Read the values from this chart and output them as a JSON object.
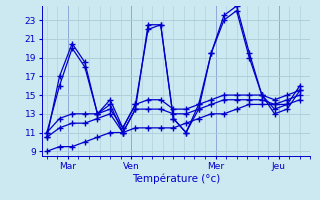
{
  "xlabel": "Température (°c)",
  "bg_color": "#cce8f0",
  "line_color": "#0000cc",
  "grid_color": "#aaccd8",
  "ylim": [
    8.5,
    24.5
  ],
  "yticks": [
    9,
    11,
    13,
    15,
    17,
    19,
    21,
    23
  ],
  "xtick_labels": [
    "Mar",
    "Ven",
    "Mer",
    "Jeu"
  ],
  "xtick_positions": [
    2,
    8,
    16,
    22
  ],
  "xlim": [
    -0.5,
    25
  ],
  "series": [
    [
      10.5,
      17.0,
      20.5,
      18.5,
      13.0,
      14.5,
      11.5,
      14.0,
      22.0,
      22.5,
      12.5,
      11.0,
      13.5,
      19.5,
      23.5,
      24.5,
      19.5,
      15.0,
      13.0,
      13.5,
      15.5
    ],
    [
      11.0,
      16.0,
      20.0,
      18.0,
      13.0,
      14.0,
      11.0,
      13.5,
      22.5,
      22.5,
      12.5,
      11.0,
      14.0,
      19.5,
      23.0,
      24.0,
      19.0,
      15.0,
      13.5,
      14.0,
      16.0
    ],
    [
      11.0,
      12.5,
      13.0,
      13.0,
      13.0,
      13.5,
      11.5,
      14.0,
      14.5,
      14.5,
      13.5,
      13.5,
      14.0,
      14.5,
      15.0,
      15.0,
      15.0,
      15.0,
      14.5,
      15.0,
      15.5
    ],
    [
      10.5,
      11.5,
      12.0,
      12.0,
      12.5,
      13.0,
      11.0,
      13.5,
      13.5,
      13.5,
      13.0,
      13.0,
      13.5,
      14.0,
      14.5,
      14.5,
      14.5,
      14.5,
      14.0,
      14.5,
      15.0
    ],
    [
      9.0,
      9.5,
      9.5,
      10.0,
      10.5,
      11.0,
      11.0,
      11.5,
      11.5,
      11.5,
      11.5,
      12.0,
      12.5,
      13.0,
      13.0,
      13.5,
      14.0,
      14.0,
      14.0,
      14.0,
      14.5
    ]
  ]
}
